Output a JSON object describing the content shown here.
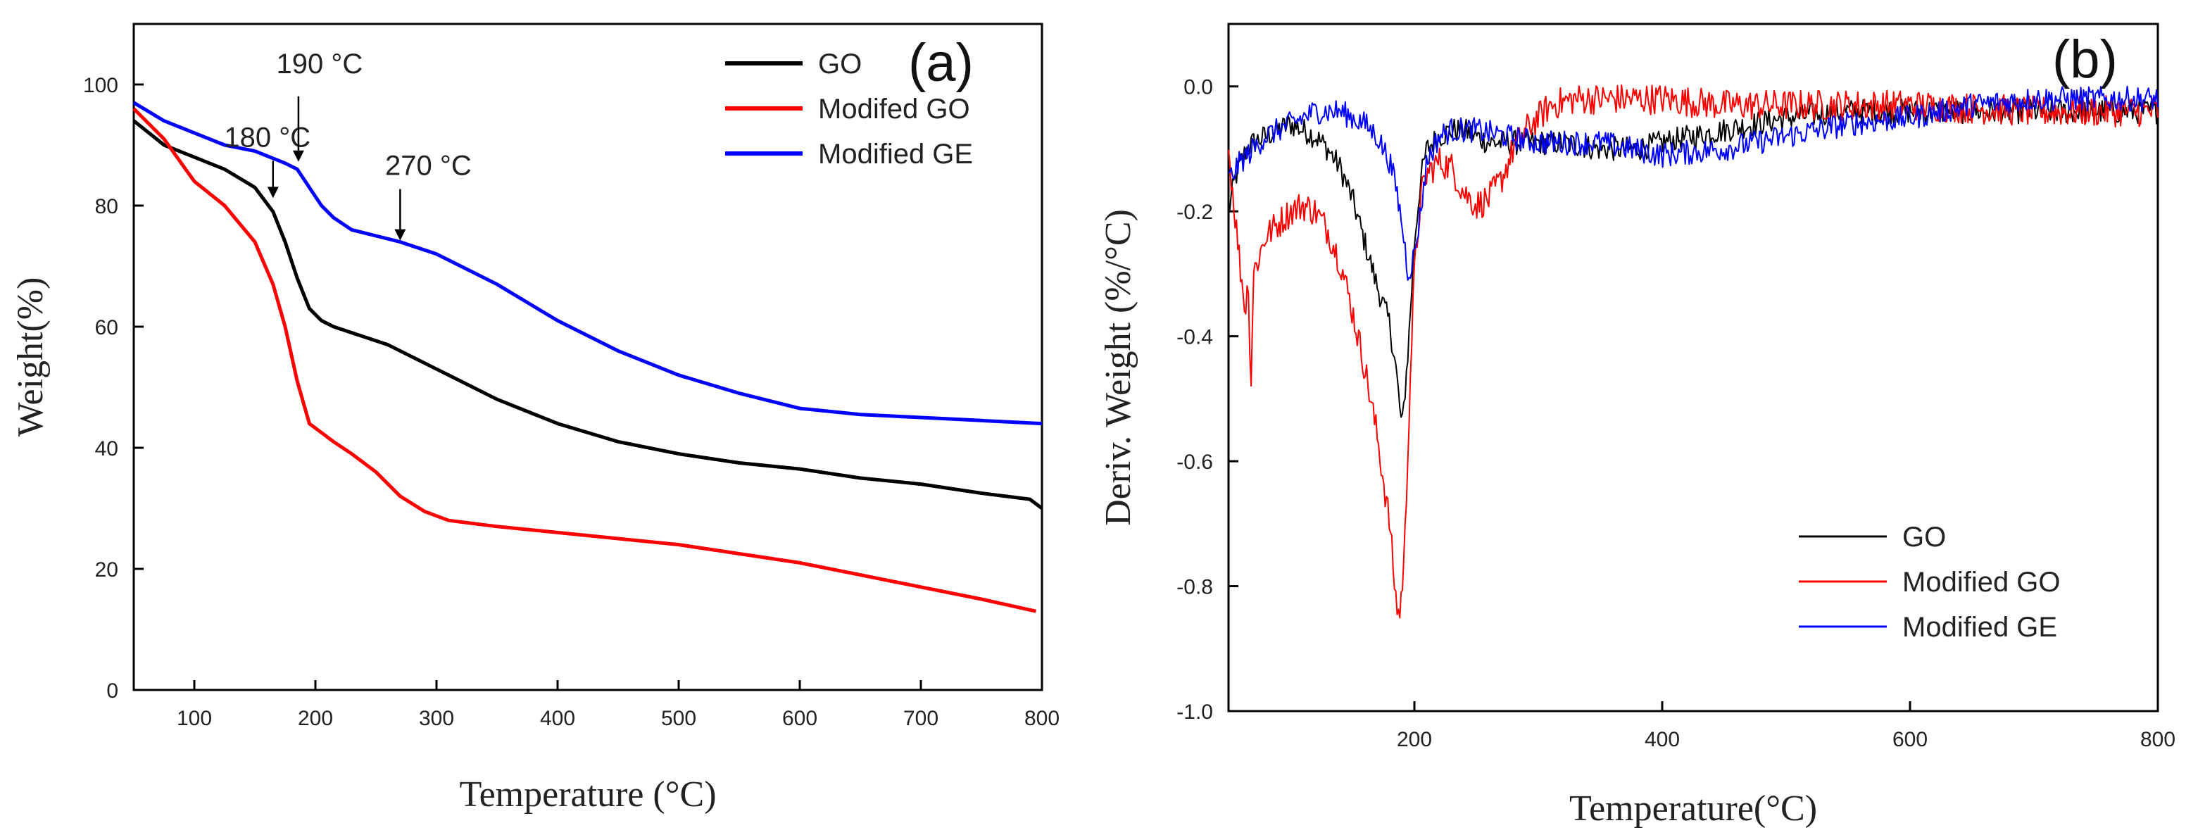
{
  "chart_data": [
    {
      "id": "a",
      "type": "line",
      "panel_label": "(a)",
      "xlabel": "Temperature (°C)",
      "ylabel": "Weight(%)",
      "xlim": [
        50,
        800
      ],
      "ylim": [
        0,
        110
      ],
      "xticks": [
        100,
        200,
        300,
        400,
        500,
        600,
        700,
        800
      ],
      "yticks": [
        0,
        20,
        40,
        60,
        80,
        100
      ],
      "legend_position": "top-right",
      "series": [
        {
          "name": "GO",
          "color": "#000000",
          "x": [
            50,
            75,
            100,
            125,
            150,
            165,
            175,
            185,
            195,
            205,
            215,
            230,
            260,
            300,
            350,
            400,
            450,
            500,
            550,
            600,
            650,
            700,
            750,
            790,
            800
          ],
          "y": [
            94,
            90,
            88,
            86,
            83,
            79,
            74,
            68,
            63,
            61,
            60,
            59,
            57,
            53,
            48,
            44,
            41,
            39,
            37.5,
            36.5,
            35,
            34,
            32.5,
            31.5,
            30
          ]
        },
        {
          "name": "Modifed GO",
          "color": "#ff0000",
          "x": [
            50,
            75,
            100,
            125,
            150,
            165,
            175,
            185,
            195,
            205,
            215,
            230,
            250,
            270,
            290,
            310,
            350,
            400,
            450,
            500,
            550,
            600,
            650,
            700,
            750,
            795
          ],
          "y": [
            96,
            91,
            84,
            80,
            74,
            67,
            60,
            51,
            44,
            42.5,
            41,
            39,
            36,
            32,
            29.5,
            28,
            27,
            26,
            25,
            24,
            22.5,
            21,
            19,
            17,
            15,
            13
          ]
        },
        {
          "name": "Modified GE",
          "color": "#0000ff",
          "x": [
            50,
            75,
            100,
            125,
            150,
            175,
            185,
            195,
            205,
            215,
            230,
            250,
            270,
            300,
            350,
            400,
            450,
            500,
            550,
            600,
            650,
            700,
            750,
            800
          ],
          "y": [
            97,
            94,
            92,
            90,
            89,
            87,
            86,
            83,
            80,
            78,
            76,
            75,
            74,
            72,
            67,
            61,
            56,
            52,
            49,
            46.5,
            45.5,
            45,
            44.5,
            44
          ]
        }
      ],
      "annotations": [
        {
          "text": "180 °C",
          "x": 165,
          "y": 81
        },
        {
          "text": "190 °C",
          "x": 186,
          "y": 87
        },
        {
          "text": "270 °C",
          "x": 270,
          "y": 74
        }
      ]
    },
    {
      "id": "b",
      "type": "line",
      "panel_label": "(b)",
      "xlabel": "Temperature(°C)",
      "ylabel": "Deriv. Weight (%/°C)",
      "xlim": [
        50,
        800
      ],
      "ylim": [
        -1.0,
        0.1
      ],
      "xticks": [
        200,
        400,
        600,
        800
      ],
      "yticks": [
        0.0,
        -0.2,
        -0.4,
        -0.6,
        -0.8,
        -1.0
      ],
      "ytick_labels": [
        "0.0",
        "-0.2",
        "-0.4",
        "-0.6",
        "-0.8",
        "-1.0"
      ],
      "legend_position": "bottom-right",
      "series": [
        {
          "name": "GO",
          "color": "#000000",
          "noise": 0.02,
          "x": [
            50,
            55,
            60,
            65,
            70,
            80,
            90,
            100,
            110,
            120,
            130,
            140,
            150,
            160,
            170,
            180,
            185,
            190,
            195,
            200,
            205,
            210,
            220,
            230,
            240,
            250,
            260,
            280,
            300,
            320,
            350,
            380,
            400,
            450,
            500,
            550,
            600,
            650,
            700,
            750,
            800
          ],
          "y": [
            -0.2,
            -0.15,
            -0.12,
            -0.1,
            -0.09,
            -0.08,
            -0.07,
            -0.06,
            -0.07,
            -0.08,
            -0.1,
            -0.13,
            -0.18,
            -0.25,
            -0.32,
            -0.38,
            -0.45,
            -0.55,
            -0.42,
            -0.25,
            -0.15,
            -0.1,
            -0.08,
            -0.07,
            -0.07,
            -0.08,
            -0.09,
            -0.09,
            -0.09,
            -0.09,
            -0.1,
            -0.1,
            -0.09,
            -0.07,
            -0.05,
            -0.04,
            -0.04,
            -0.04,
            -0.04,
            -0.04,
            -0.04
          ]
        },
        {
          "name": "Modified GO",
          "color": "#ff0000",
          "noise": 0.025,
          "x": [
            50,
            55,
            60,
            64,
            66,
            68,
            70,
            75,
            80,
            90,
            100,
            110,
            120,
            130,
            140,
            150,
            160,
            170,
            180,
            185,
            188,
            192,
            196,
            200,
            205,
            210,
            220,
            230,
            240,
            250,
            260,
            270,
            280,
            290,
            300,
            310,
            330,
            350,
            400,
            450,
            500,
            600,
            700,
            800
          ],
          "y": [
            -0.1,
            -0.2,
            -0.3,
            -0.36,
            -0.3,
            -0.5,
            -0.3,
            -0.27,
            -0.24,
            -0.22,
            -0.2,
            -0.19,
            -0.2,
            -0.23,
            -0.28,
            -0.36,
            -0.45,
            -0.56,
            -0.7,
            -0.82,
            -0.85,
            -0.75,
            -0.5,
            -0.3,
            -0.18,
            -0.14,
            -0.12,
            -0.13,
            -0.17,
            -0.19,
            -0.18,
            -0.15,
            -0.1,
            -0.07,
            -0.05,
            -0.03,
            -0.02,
            -0.02,
            -0.02,
            -0.03,
            -0.03,
            -0.03,
            -0.04,
            -0.04
          ]
        },
        {
          "name": "Modified GE",
          "color": "#0000ff",
          "noise": 0.02,
          "x": [
            50,
            60,
            70,
            80,
            90,
            100,
            110,
            120,
            130,
            140,
            150,
            160,
            170,
            180,
            185,
            190,
            195,
            200,
            205,
            210,
            220,
            230,
            250,
            300,
            350,
            400,
            450,
            500,
            550,
            600,
            650,
            700,
            750,
            800
          ],
          "y": [
            -0.15,
            -0.12,
            -0.1,
            -0.08,
            -0.07,
            -0.06,
            -0.05,
            -0.04,
            -0.04,
            -0.04,
            -0.05,
            -0.06,
            -0.08,
            -0.12,
            -0.16,
            -0.22,
            -0.3,
            -0.27,
            -0.2,
            -0.12,
            -0.08,
            -0.07,
            -0.07,
            -0.09,
            -0.09,
            -0.11,
            -0.1,
            -0.08,
            -0.06,
            -0.05,
            -0.03,
            -0.02,
            -0.02,
            -0.02
          ]
        }
      ]
    }
  ]
}
